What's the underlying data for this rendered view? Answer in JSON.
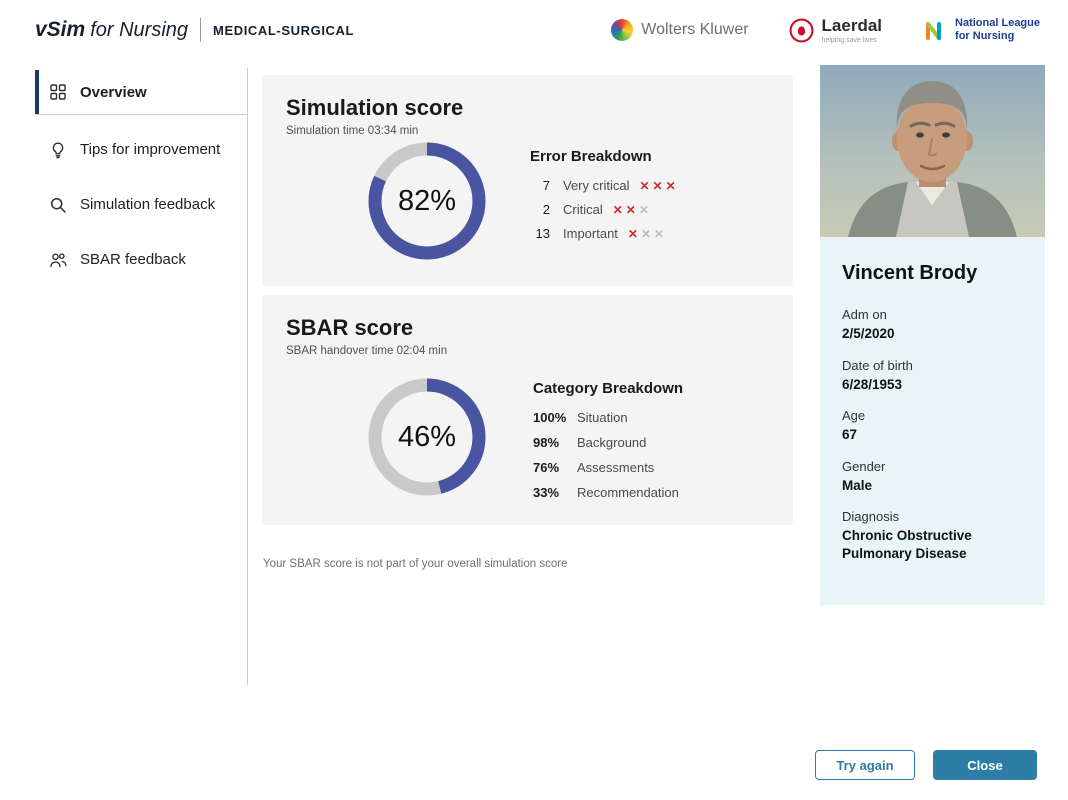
{
  "header": {
    "brand": {
      "name": "vSim",
      "suffix": "for Nursing",
      "module": "MEDICAL-SURGICAL"
    },
    "partners": {
      "wolters_kluwer": "Wolters Kluwer",
      "laerdal": "Laerdal",
      "laerdal_tagline": "helping save lives",
      "nln_line1": "National League",
      "nln_line2": "for Nursing"
    }
  },
  "sidebar": {
    "items": [
      {
        "label": "Overview",
        "icon": "grid-icon",
        "active": true
      },
      {
        "label": "Tips for improvement",
        "icon": "lightbulb-icon",
        "active": false
      },
      {
        "label": "Simulation feedback",
        "icon": "magnifier-icon",
        "active": false
      },
      {
        "label": "SBAR feedback",
        "icon": "people-icon",
        "active": false
      }
    ]
  },
  "simulation_score": {
    "title": "Simulation score",
    "subtitle": "Simulation time 03:34 min",
    "percent": 82,
    "percent_label": "82%",
    "error_breakdown": {
      "heading": "Error Breakdown",
      "rows": [
        {
          "count": "7",
          "label": "Very critical",
          "marks": [
            "red",
            "red",
            "red"
          ]
        },
        {
          "count": "2",
          "label": "Critical",
          "marks": [
            "red",
            "red",
            "gray"
          ]
        },
        {
          "count": "13",
          "label": "Important",
          "marks": [
            "red",
            "gray",
            "gray"
          ]
        }
      ]
    }
  },
  "sbar_score": {
    "title": "SBAR score",
    "subtitle": "SBAR handover time 02:04 min",
    "percent": 46,
    "percent_label": "46%",
    "category_breakdown": {
      "heading": "Category Breakdown",
      "rows": [
        {
          "value": "100%",
          "label": "Situation"
        },
        {
          "value": "98%",
          "label": "Background"
        },
        {
          "value": "76%",
          "label": "Assessments"
        },
        {
          "value": "33%",
          "label": "Recommendation"
        }
      ]
    }
  },
  "note": "Your SBAR score is not part of your overall simulation score",
  "patient": {
    "name": "Vincent Brody",
    "fields": [
      {
        "label": "Adm on",
        "value": "2/5/2020"
      },
      {
        "label": "Date of birth",
        "value": "6/28/1953"
      },
      {
        "label": "Age",
        "value": "67"
      },
      {
        "label": "Gender",
        "value": "Male"
      },
      {
        "label": "Diagnosis",
        "value": "Chronic Obstructive Pulmonary Disease"
      }
    ]
  },
  "footer": {
    "try_again": "Try again",
    "close": "Close"
  },
  "glyphs": {
    "x": "✕"
  },
  "colors": {
    "donut_fill": "#4a55a2",
    "donut_track": "#c9c9c9",
    "accent_blue": "#2e7da6",
    "error_red": "#cc2b2b",
    "mark_gray": "#bdbdbd",
    "card_bg": "#f4f4f4",
    "panel_blue": "#e9f4f7",
    "active_indicator": "#1c3a5e"
  },
  "chart_data": [
    {
      "type": "donut",
      "title": "Simulation score",
      "value": 82,
      "max": 100,
      "label": "82%"
    },
    {
      "type": "donut",
      "title": "SBAR score",
      "value": 46,
      "max": 100,
      "label": "46%"
    }
  ]
}
